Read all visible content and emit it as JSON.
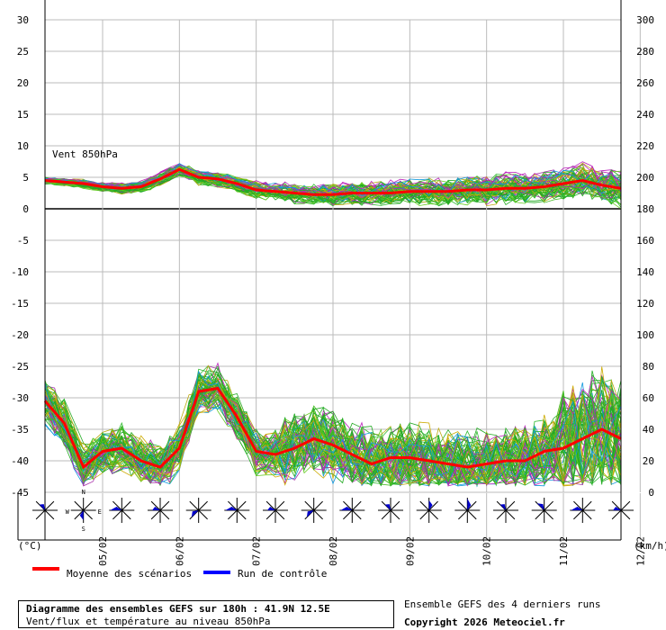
{
  "chart_data": {
    "type": "line",
    "title": "Diagramme des ensembles GEFS sur 180h : 41.9N 12.5E",
    "subtitle": "Vent/flux et température au niveau 850hPa",
    "y_left_label": "(°C)",
    "y_right_label": "(km/h)",
    "panel_label": "Vent 850hPa",
    "y_left_ticks": [
      30,
      25,
      20,
      15,
      10,
      5,
      0,
      -5,
      -10,
      -15,
      -20,
      -25,
      -30,
      -35,
      -40,
      -45
    ],
    "y_left_range": [
      -45,
      30
    ],
    "y_right_ticks": [
      300,
      280,
      260,
      240,
      220,
      200,
      180,
      160,
      140,
      120,
      100,
      80,
      60,
      40,
      20,
      0
    ],
    "wind_axis_range": [
      0,
      120
    ],
    "x_tick_labels": [
      "05/02",
      "06/02",
      "07/02",
      "08/02",
      "09/02",
      "10/02",
      "11/02",
      "12/02"
    ],
    "x_range_hours": [
      0,
      180
    ],
    "grid": true,
    "legend_placement": "bottom",
    "legend": [
      {
        "label": "Moyenne des scénarios",
        "color": "#ff0000"
      },
      {
        "label": "Run de contrôle",
        "color": "#0000ff"
      }
    ],
    "temperature_mean": {
      "name": "Moyenne des scénarios",
      "x_hours": [
        0,
        6,
        12,
        18,
        24,
        30,
        36,
        42,
        48,
        54,
        60,
        66,
        72,
        78,
        84,
        90,
        96,
        102,
        108,
        114,
        120,
        126,
        132,
        138,
        144,
        150,
        156,
        162,
        168,
        174,
        180
      ],
      "values": [
        -30.5,
        -34,
        -41,
        -38.5,
        -38,
        -40,
        -41,
        -38,
        -29,
        -28.5,
        -33,
        -38.5,
        -39,
        -38,
        -36.5,
        -37.5,
        -39,
        -40.5,
        -39.5,
        -39.5,
        -40,
        -40.5,
        -41,
        -40.5,
        -40,
        -40,
        -38.5,
        -38,
        -36.5,
        -35,
        -36.5
      ]
    },
    "wind_mean_kmh": {
      "name": "Moyenne des scénarios",
      "x_hours": [
        0,
        6,
        12,
        18,
        24,
        30,
        36,
        42,
        48,
        54,
        60,
        66,
        72,
        78,
        84,
        90,
        96,
        102,
        108,
        114,
        120,
        126,
        132,
        138,
        144,
        150,
        156,
        162,
        168,
        174,
        180
      ],
      "values": [
        18,
        17,
        16,
        14,
        13,
        14,
        19,
        25,
        20,
        19,
        16,
        12,
        11,
        10,
        9,
        9,
        10,
        10,
        10,
        11,
        11,
        11,
        12,
        12,
        13,
        13,
        14,
        16,
        18,
        15,
        13
      ]
    },
    "wind_roses": [
      {
        "hour": 0,
        "main_dir": "NW"
      },
      {
        "hour": 12,
        "main_dir": "S"
      },
      {
        "hour": 24,
        "main_dir": "W"
      },
      {
        "hour": 36,
        "main_dir": "W"
      },
      {
        "hour": 48,
        "main_dir": "SW"
      },
      {
        "hour": 60,
        "main_dir": "W"
      },
      {
        "hour": 72,
        "main_dir": "W"
      },
      {
        "hour": 84,
        "main_dir": "SW"
      },
      {
        "hour": 96,
        "main_dir": "W"
      },
      {
        "hour": 108,
        "main_dir": "NW"
      },
      {
        "hour": 120,
        "main_dir": "N"
      },
      {
        "hour": 132,
        "main_dir": "N"
      },
      {
        "hour": 144,
        "main_dir": "NW"
      },
      {
        "hour": 156,
        "main_dir": "NW"
      },
      {
        "hour": 168,
        "main_dir": "W"
      },
      {
        "hour": 180,
        "main_dir": "W"
      }
    ],
    "first_rose_compass": [
      "N",
      "W",
      "E",
      "S"
    ],
    "colors": {
      "mean": "#ff0000",
      "control": "#0000ff",
      "ensemble": [
        "#22aa22",
        "#22aa22",
        "#22aa22",
        "#bb22bb",
        "#bbaa11",
        "#33bb33",
        "#66cc22",
        "#1199dd",
        "#22aa22",
        "#aa33aa",
        "#44bb22",
        "#ccaa00"
      ],
      "rose_fill": "#0000cc"
    }
  },
  "footer": {
    "ensemble_note": "Ensemble GEFS des 4 derniers runs",
    "copyright": "Copyright 2026 Meteociel.fr"
  }
}
